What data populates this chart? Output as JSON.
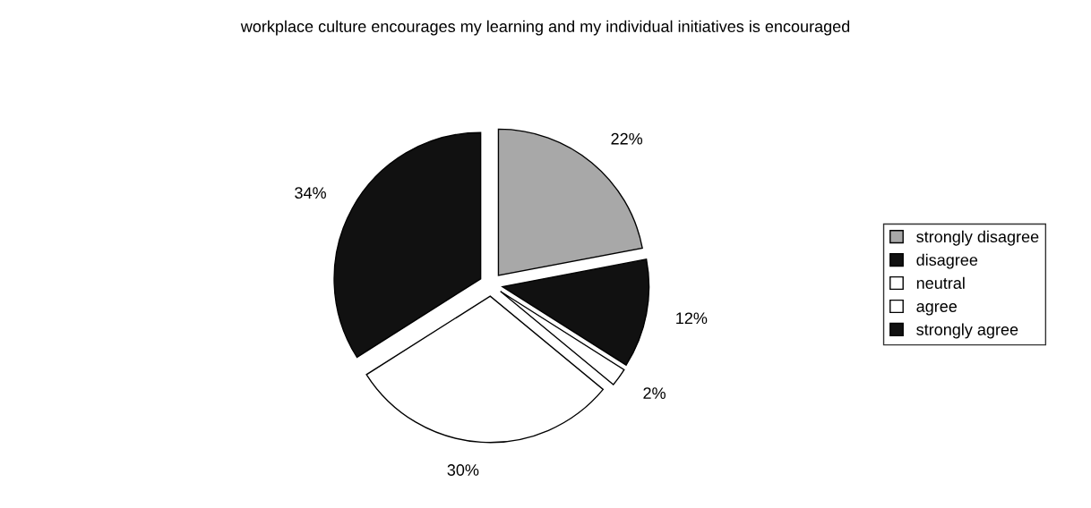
{
  "chart_data": {
    "type": "pie",
    "title": "workplace culture encourages my learning and my individual initiatives is encouraged",
    "categories": [
      "strongly disagree",
      "disagree",
      "neutral",
      "agree",
      "strongly agree"
    ],
    "values": [
      22,
      12,
      2,
      30,
      34
    ],
    "colors": [
      "#a8a8a8",
      "#111111",
      "#ffffff",
      "#ffffff",
      "#111111"
    ],
    "value_labels": [
      "22%",
      "12%",
      "2%",
      "30%",
      "34%"
    ],
    "legend": "right"
  }
}
